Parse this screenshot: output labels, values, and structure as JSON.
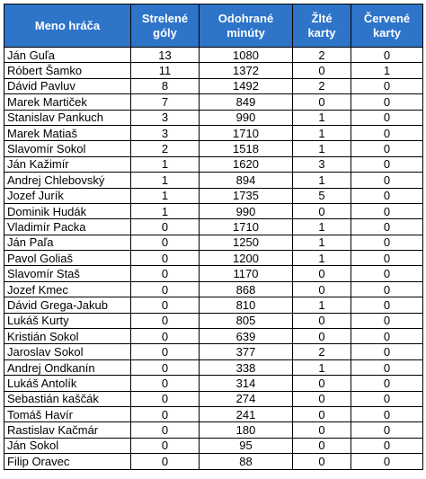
{
  "table": {
    "header": [
      [
        "Meno hráča"
      ],
      [
        "Strelené",
        "góly"
      ],
      [
        "Odohrané",
        "minúty"
      ],
      [
        "Žlté",
        "karty"
      ],
      [
        "Červené",
        "karty"
      ]
    ],
    "rows": [
      [
        "Ján Guľa",
        13,
        1080,
        2,
        0
      ],
      [
        "Róbert Šamko",
        11,
        1372,
        0,
        1
      ],
      [
        "Dávid Pavluv",
        8,
        1492,
        2,
        0
      ],
      [
        "Marek Martiček",
        7,
        849,
        0,
        0
      ],
      [
        "Stanislav Pankuch",
        3,
        990,
        1,
        0
      ],
      [
        "Marek Matiaš",
        3,
        1710,
        1,
        0
      ],
      [
        "Slavomír Sokol",
        2,
        1518,
        1,
        0
      ],
      [
        "Ján Kažimír",
        1,
        1620,
        3,
        0
      ],
      [
        "Andrej Chlebovský",
        1,
        894,
        1,
        0
      ],
      [
        "Jozef Jurík",
        1,
        1735,
        5,
        0
      ],
      [
        "Dominik Hudák",
        1,
        990,
        0,
        0
      ],
      [
        "Vladimír Packa",
        0,
        1710,
        1,
        0
      ],
      [
        "Ján Paľa",
        0,
        1250,
        1,
        0
      ],
      [
        "Pavol Goliaš",
        0,
        1200,
        1,
        0
      ],
      [
        "Slavomír Staš",
        0,
        1170,
        0,
        0
      ],
      [
        "Jozef Kmec",
        0,
        868,
        0,
        0
      ],
      [
        "Dávid Grega-Jakub",
        0,
        810,
        1,
        0
      ],
      [
        "Lukáš Kurty",
        0,
        805,
        0,
        0
      ],
      [
        "Kristián Sokol",
        0,
        639,
        0,
        0
      ],
      [
        "Jaroslav Sokol",
        0,
        377,
        2,
        0
      ],
      [
        "Andrej Ondkanín",
        0,
        338,
        1,
        0
      ],
      [
        "Lukáš Antolík",
        0,
        314,
        0,
        0
      ],
      [
        "Sebastián kaščák",
        0,
        274,
        0,
        0
      ],
      [
        "Tomáš Havír",
        0,
        241,
        0,
        0
      ],
      [
        "Rastislav Kačmár",
        0,
        180,
        0,
        0
      ],
      [
        "Ján Sokol",
        0,
        95,
        0,
        0
      ],
      [
        "Filip Oravec",
        0,
        88,
        0,
        0
      ]
    ]
  }
}
